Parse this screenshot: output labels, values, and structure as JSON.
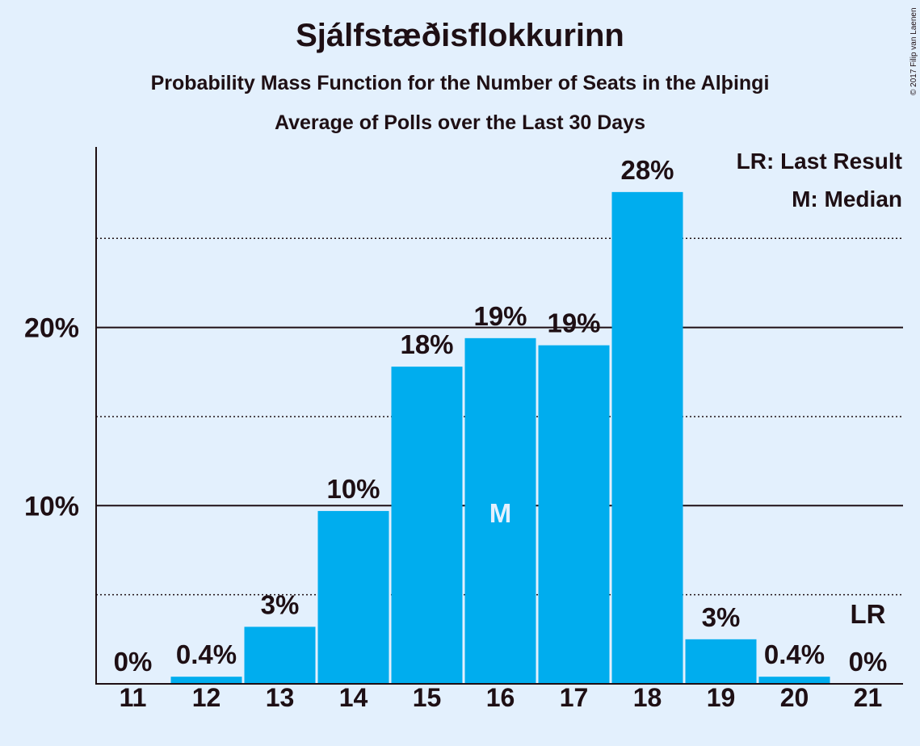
{
  "chart_data": {
    "type": "bar",
    "title": "Sjálfstæðisflokkurinn",
    "subtitle": "Probability Mass Function for the Number of Seats in the Alþingi",
    "subtitle2": "Average of Polls over the Last 30 Days",
    "copyright": "© 2017 Filip van Laenen",
    "categories": [
      "11",
      "12",
      "13",
      "14",
      "15",
      "16",
      "17",
      "18",
      "19",
      "20",
      "21"
    ],
    "values": [
      0,
      0.4,
      3.2,
      9.7,
      17.8,
      19.4,
      19.0,
      27.6,
      2.5,
      0.4,
      0
    ],
    "value_labels": [
      "0%",
      "0.4%",
      "3%",
      "10%",
      "18%",
      "19%",
      "19%",
      "28%",
      "3%",
      "0.4%",
      "0%"
    ],
    "ylim": [
      0,
      30
    ],
    "y_ticks": [
      {
        "value": 10,
        "label": "10%"
      },
      {
        "value": 20,
        "label": "20%"
      }
    ],
    "minor_gridlines": [
      5,
      15,
      25
    ],
    "median_index": 5,
    "median_marker": "M",
    "last_result_index": 10,
    "last_result_marker": "LR",
    "legend": [
      "LR: Last Result",
      "M: Median"
    ],
    "legend_position": "top-right",
    "xlabel": "",
    "ylabel": "",
    "colors": {
      "bar": "#00adee",
      "background": "#e3f0fd",
      "text": "#1e0f14",
      "median_text": "#e3f0fd"
    }
  }
}
